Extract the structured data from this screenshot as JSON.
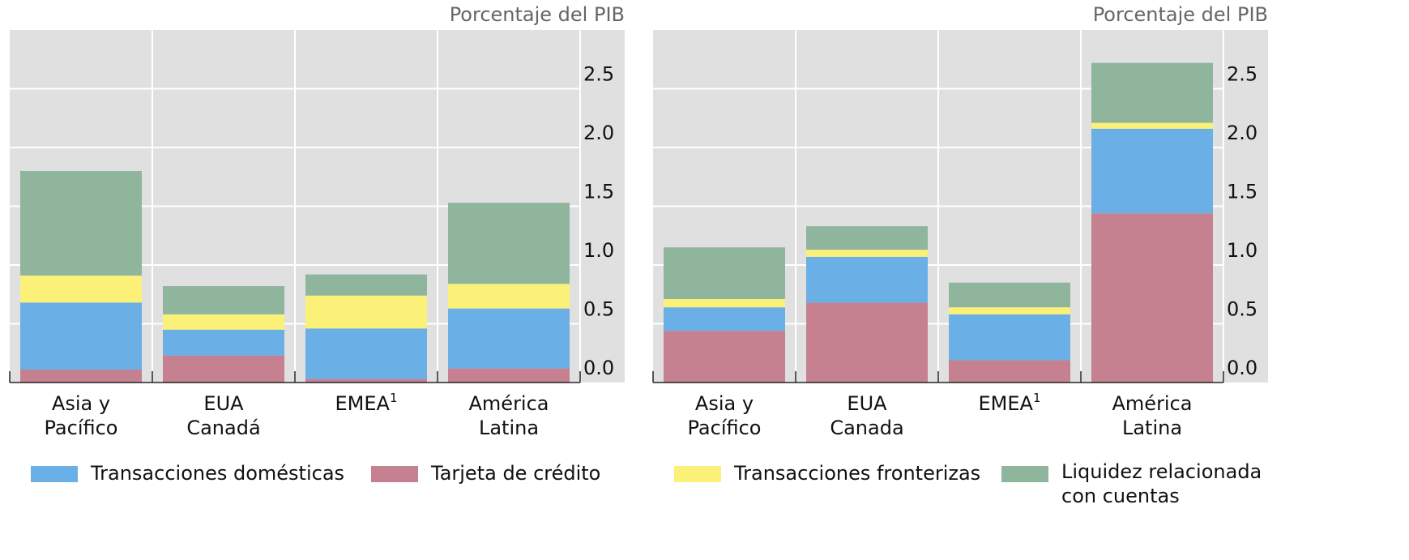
{
  "chart_data": [
    {
      "type": "stacked_bar",
      "axis_label": "Porcentaje del PIB",
      "categories": [
        [
          "Asia y",
          "Pacífico"
        ],
        [
          "EUA",
          "Canadá"
        ],
        [
          "EMEA"
        ],
        [
          "América",
          "Latina"
        ]
      ],
      "category_notes": [
        null,
        null,
        "1",
        null
      ],
      "series": [
        {
          "name": "Tarjeta de crédito",
          "color": "#c58190",
          "values": [
            0.11,
            0.23,
            0.03,
            0.12
          ]
        },
        {
          "name": "Transacciones domésticas",
          "color": "#6aafe5",
          "values": [
            0.57,
            0.22,
            0.43,
            0.51
          ]
        },
        {
          "name": "Transacciones fronterizas",
          "color": "#fbf078",
          "values": [
            0.23,
            0.13,
            0.28,
            0.21
          ]
        },
        {
          "name": "Liquidez relacionada con cuentas",
          "color": "#8fb59d",
          "values": [
            0.89,
            0.24,
            0.18,
            0.69
          ]
        }
      ],
      "ylim": [
        0,
        3
      ],
      "yticks": [
        {
          "value": 0,
          "label": "0.0"
        },
        0.5,
        {
          "value": 1,
          "label": "1.0"
        },
        1.5,
        {
          "value": 2,
          "label": "2.0"
        },
        2.5
      ],
      "grid": true
    },
    {
      "type": "stacked_bar",
      "axis_label": "Porcentaje del PIB",
      "categories": [
        [
          "Asia y",
          "Pacífico"
        ],
        [
          "EUA",
          "Canada"
        ],
        [
          "EMEA"
        ],
        [
          "América",
          "Latina"
        ]
      ],
      "category_notes": [
        null,
        null,
        "1",
        null
      ],
      "series": [
        {
          "name": "Tarjeta de crédito",
          "color": "#c58190",
          "values": [
            0.44,
            0.68,
            0.19,
            1.44
          ]
        },
        {
          "name": "Transacciones domésticas",
          "color": "#6aafe5",
          "values": [
            0.2,
            0.39,
            0.39,
            0.72
          ]
        },
        {
          "name": "Transacciones fronterizas",
          "color": "#fbf078",
          "values": [
            0.07,
            0.06,
            0.06,
            0.05
          ]
        },
        {
          "name": "Liquidez relacionada con cuentas",
          "color": "#8fb59d",
          "values": [
            0.44,
            0.2,
            0.21,
            0.51
          ]
        }
      ],
      "ylim": [
        0,
        3
      ],
      "yticks": [
        {
          "value": 0,
          "label": "0.0"
        },
        0.5,
        {
          "value": 1,
          "label": "1.0"
        },
        1.5,
        {
          "value": 2,
          "label": "2.0"
        },
        2.5
      ],
      "grid": true
    }
  ]
}
